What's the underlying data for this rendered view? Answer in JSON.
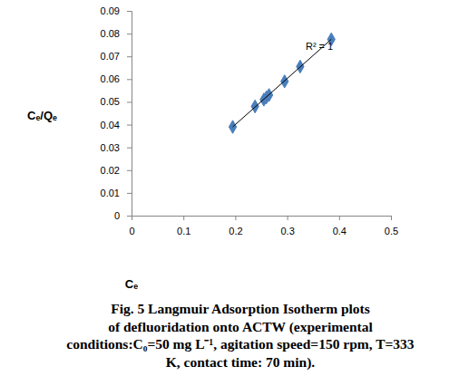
{
  "chart_data": {
    "type": "scatter",
    "x_label": "Cₑ",
    "y_label": "Cₑ/Qₑ",
    "annotation": "R² = 1",
    "caption_label": "Fig. 5",
    "caption": [
      "Langmuir Adsorption Isotherm plots",
      "of defluoridation onto ACTW (experimental",
      "conditions:C₀=50 mg L⁻¹, agitation speed=150 rpm, T=333",
      "K, contact time: 70 min)."
    ],
    "xlim": [
      0,
      0.5
    ],
    "xticks": [
      0,
      0.1,
      0.2,
      0.3,
      0.4,
      0.5
    ],
    "ylim": [
      0,
      0.09
    ],
    "yticks": [
      0,
      0.01,
      0.02,
      0.03,
      0.04,
      0.05,
      0.06,
      0.07,
      0.08,
      0.09
    ],
    "grid": false,
    "series": [
      {
        "type": "scatter",
        "color": "#4a7ebb",
        "marker": "diamond",
        "x": [
          0.195,
          0.238,
          0.255,
          0.26,
          0.265,
          0.295,
          0.325,
          0.385
        ],
        "values": [
          0.039,
          0.048,
          0.051,
          0.052,
          0.053,
          0.059,
          0.0655,
          0.0775
        ]
      },
      {
        "type": "line",
        "color": "#000000",
        "line_style": "solid",
        "x": [
          0.195,
          0.385
        ],
        "values": [
          0.039,
          0.0775
        ]
      }
    ]
  }
}
